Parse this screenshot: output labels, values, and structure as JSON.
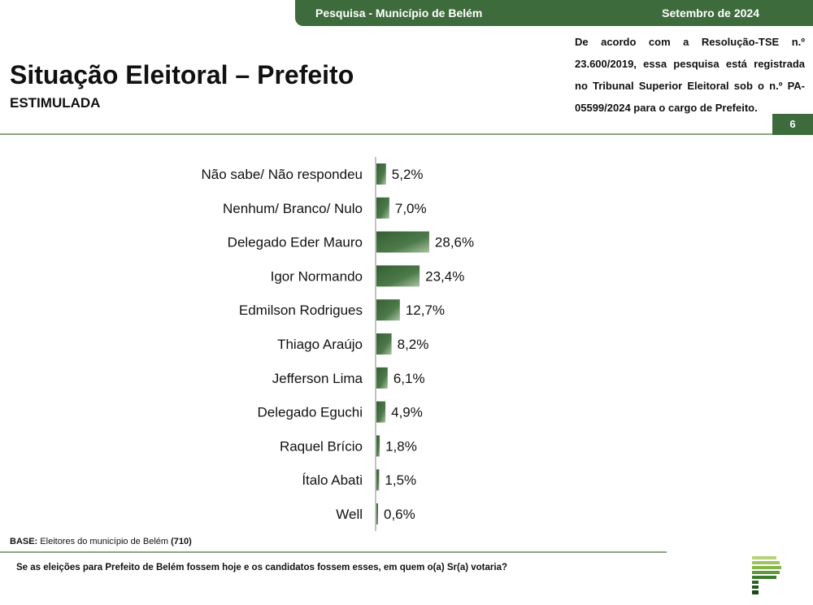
{
  "header": {
    "survey_label": "Pesquisa - Município de Belém",
    "date_label": "Setembro de 2024",
    "title": "Situação Eleitoral – Prefeito",
    "subtitle": "ESTIMULADA",
    "disclaimer": "De acordo com a Resolução-TSE n.º 23.600/2019, essa pesquisa está registrada no Tribunal Superior Eleitoral sob o n.º PA-05599/2024 para o cargo de Prefeito.",
    "page_number": "6"
  },
  "footer": {
    "base_label": "BASE:",
    "base_text": " Eleitores do município de Belém ",
    "base_count": "(710)",
    "question": "Se as eleições para Prefeito de Belém fossem hoje e os candidatos fossem esses, em quem o(a) Sr(a) votaria?"
  },
  "colors": {
    "brand_green": "#3e6b3c",
    "bar_dark": "#365f34",
    "bar_light": "#a9c3a3",
    "rule_green": "#8aa882"
  },
  "chart_data": {
    "type": "bar",
    "orientation": "horizontal",
    "categories": [
      "Não sabe/ Não respondeu",
      "Nenhum/ Branco/ Nulo",
      "Delegado Eder Mauro",
      "Igor Normando",
      "Edmilson Rodrigues",
      "Thiago Araújo",
      "Jefferson Lima",
      "Delegado Eguchi",
      "Raquel Brício",
      "Ítalo Abati",
      "Well"
    ],
    "values": [
      5.2,
      7.0,
      28.6,
      23.4,
      12.7,
      8.2,
      6.1,
      4.9,
      1.8,
      1.5,
      0.6
    ],
    "value_labels": [
      "5,2%",
      "7,0%",
      "28,6%",
      "23,4%",
      "12,7%",
      "8,2%",
      "6,1%",
      "4,9%",
      "1,8%",
      "1,5%",
      "0,6%"
    ],
    "unit": "%",
    "grid": false,
    "legend": "none"
  }
}
